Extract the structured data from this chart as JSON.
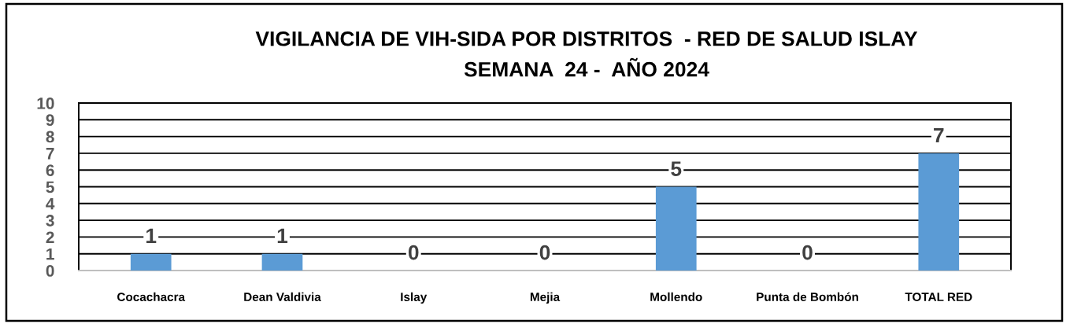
{
  "chart_data": {
    "type": "bar",
    "title": "VIGILANCIA DE VIH-SIDA POR DISTRITOS  - RED DE SALUD ISLAY\nSEMANA  24 -  AÑO 2024",
    "categories": [
      "Cocachacra",
      "Dean Valdivia",
      "Islay",
      "Mejia",
      "Mollendo",
      "Punta de Bombón",
      "TOTAL RED"
    ],
    "values": [
      1,
      1,
      0,
      0,
      5,
      0,
      7
    ],
    "color": "#5b9bd5",
    "ylim": [
      0,
      10
    ],
    "yticks": [
      0,
      1,
      2,
      3,
      4,
      5,
      6,
      7,
      8,
      9,
      10
    ],
    "grid": "y",
    "data_labels": true
  }
}
